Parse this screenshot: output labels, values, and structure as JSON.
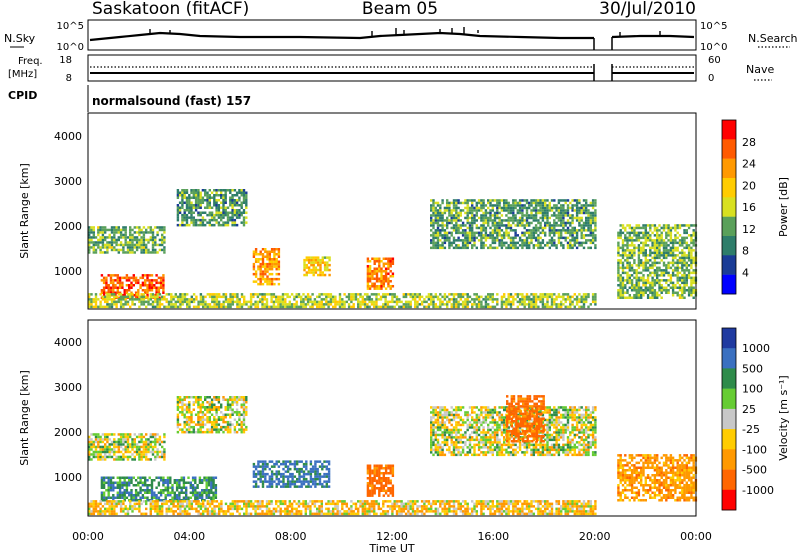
{
  "header": {
    "station": "Saskatoon (fitACF)",
    "beam": "Beam 05",
    "date": "30/Jul/2010"
  },
  "panels": {
    "nsky": {
      "label": "N.Sky",
      "ticks": [
        "10^5",
        "10^0"
      ]
    },
    "nsearch": {
      "label": "N.Search",
      "ticks": [
        "10^5",
        "10^0"
      ]
    },
    "freq": {
      "label": "Freq.",
      "unit": "[MHz]",
      "ticks": [
        "18",
        "8"
      ]
    },
    "nave": {
      "label": "Nave",
      "ticks": [
        "60",
        "0"
      ]
    },
    "cpid": {
      "label": "CPID",
      "value": "normalsound (fast) 157"
    }
  },
  "colorbars": {
    "power": {
      "label": "Power [dB]",
      "ticks": [
        "28",
        "24",
        "20",
        "16",
        "12",
        "8",
        "4"
      ],
      "colors": [
        "#ff0000",
        "#ff5a00",
        "#ff9900",
        "#ffcc00",
        "#d8e020",
        "#5aa05a",
        "#2e7d6a",
        "#1a3c96",
        "#0000ff"
      ]
    },
    "velocity": {
      "label": "Velocity [m s⁻¹]",
      "ticks": [
        "1000",
        "500",
        "100",
        "25",
        "-25",
        "-100",
        "-500",
        "-1000"
      ],
      "colors": [
        "#1f3aa0",
        "#3a70c0",
        "#2e8b4a",
        "#66cc33",
        "#c8c8c8",
        "#ffcc00",
        "#ff9900",
        "#ff6600",
        "#ff0000"
      ]
    }
  },
  "axes": {
    "ylabel": "Slant Range [km]",
    "yticks": [
      "4000",
      "3000",
      "2000",
      "1000"
    ],
    "xticks": [
      "00:00",
      "04:00",
      "08:00",
      "12:00",
      "16:00",
      "20:00",
      "00:00"
    ],
    "xlabel": "Time UT"
  },
  "chart_data": [
    {
      "type": "heatmap",
      "title": "Power",
      "x_range_hours": [
        0,
        24
      ],
      "y_range_km": [
        180,
        4500
      ],
      "colorscale_label": "Power [dB]",
      "colorscale_range": [
        0,
        30
      ],
      "data_gap_hours": [
        20.2,
        20.8
      ],
      "features": [
        {
          "t0": 0.0,
          "t1": 3.0,
          "r0": 1400,
          "r1": 2000,
          "level_db": 12
        },
        {
          "t0": 0.5,
          "t1": 3.0,
          "r0": 400,
          "r1": 900,
          "level_db": 26
        },
        {
          "t0": 3.5,
          "t1": 6.2,
          "r0": 2000,
          "r1": 2800,
          "level_db": 10
        },
        {
          "t0": 6.5,
          "t1": 7.5,
          "r0": 700,
          "r1": 1500,
          "level_db": 22
        },
        {
          "t0": 8.5,
          "t1": 9.5,
          "r0": 900,
          "r1": 1300,
          "level_db": 18
        },
        {
          "t0": 11.0,
          "t1": 12.0,
          "r0": 600,
          "r1": 1300,
          "level_db": 24
        },
        {
          "t0": 13.5,
          "t1": 20.0,
          "r0": 1500,
          "r1": 2600,
          "level_db": 10
        },
        {
          "t0": 20.8,
          "t1": 24.0,
          "r0": 400,
          "r1": 2000,
          "level_db": 12
        },
        {
          "t0": 0.0,
          "t1": 20.0,
          "r0": 200,
          "r1": 500,
          "level_db": 14
        }
      ]
    },
    {
      "type": "heatmap",
      "title": "Velocity",
      "x_range_hours": [
        0,
        24
      ],
      "y_range_km": [
        180,
        4500
      ],
      "colorscale_label": "Velocity [m s⁻¹]",
      "colorscale_range": [
        -1000,
        1000
      ],
      "data_gap_hours": [
        20.2,
        20.8
      ],
      "features": [
        {
          "t0": 0.0,
          "t1": 3.0,
          "r0": 1400,
          "r1": 2000,
          "level_ms": 0
        },
        {
          "t0": 3.5,
          "t1": 6.2,
          "r0": 2000,
          "r1": 2800,
          "level_ms": 0
        },
        {
          "t0": 0.5,
          "t1": 5.0,
          "r0": 500,
          "r1": 1000,
          "level_ms": 200
        },
        {
          "t0": 6.5,
          "t1": 9.5,
          "r0": 800,
          "r1": 1400,
          "level_ms": 300
        },
        {
          "t0": 11.0,
          "t1": 12.0,
          "r0": 600,
          "r1": 1300,
          "level_ms": -400
        },
        {
          "t0": 13.5,
          "t1": 20.0,
          "r0": 1500,
          "r1": 2600,
          "level_ms": 0
        },
        {
          "t0": 16.5,
          "t1": 18.0,
          "r0": 1800,
          "r1": 2800,
          "level_ms": -400
        },
        {
          "t0": 20.8,
          "t1": 24.0,
          "r0": 500,
          "r1": 1500,
          "level_ms": -200
        },
        {
          "t0": 0.0,
          "t1": 20.0,
          "r0": 200,
          "r1": 500,
          "level_ms": -80
        }
      ]
    }
  ]
}
